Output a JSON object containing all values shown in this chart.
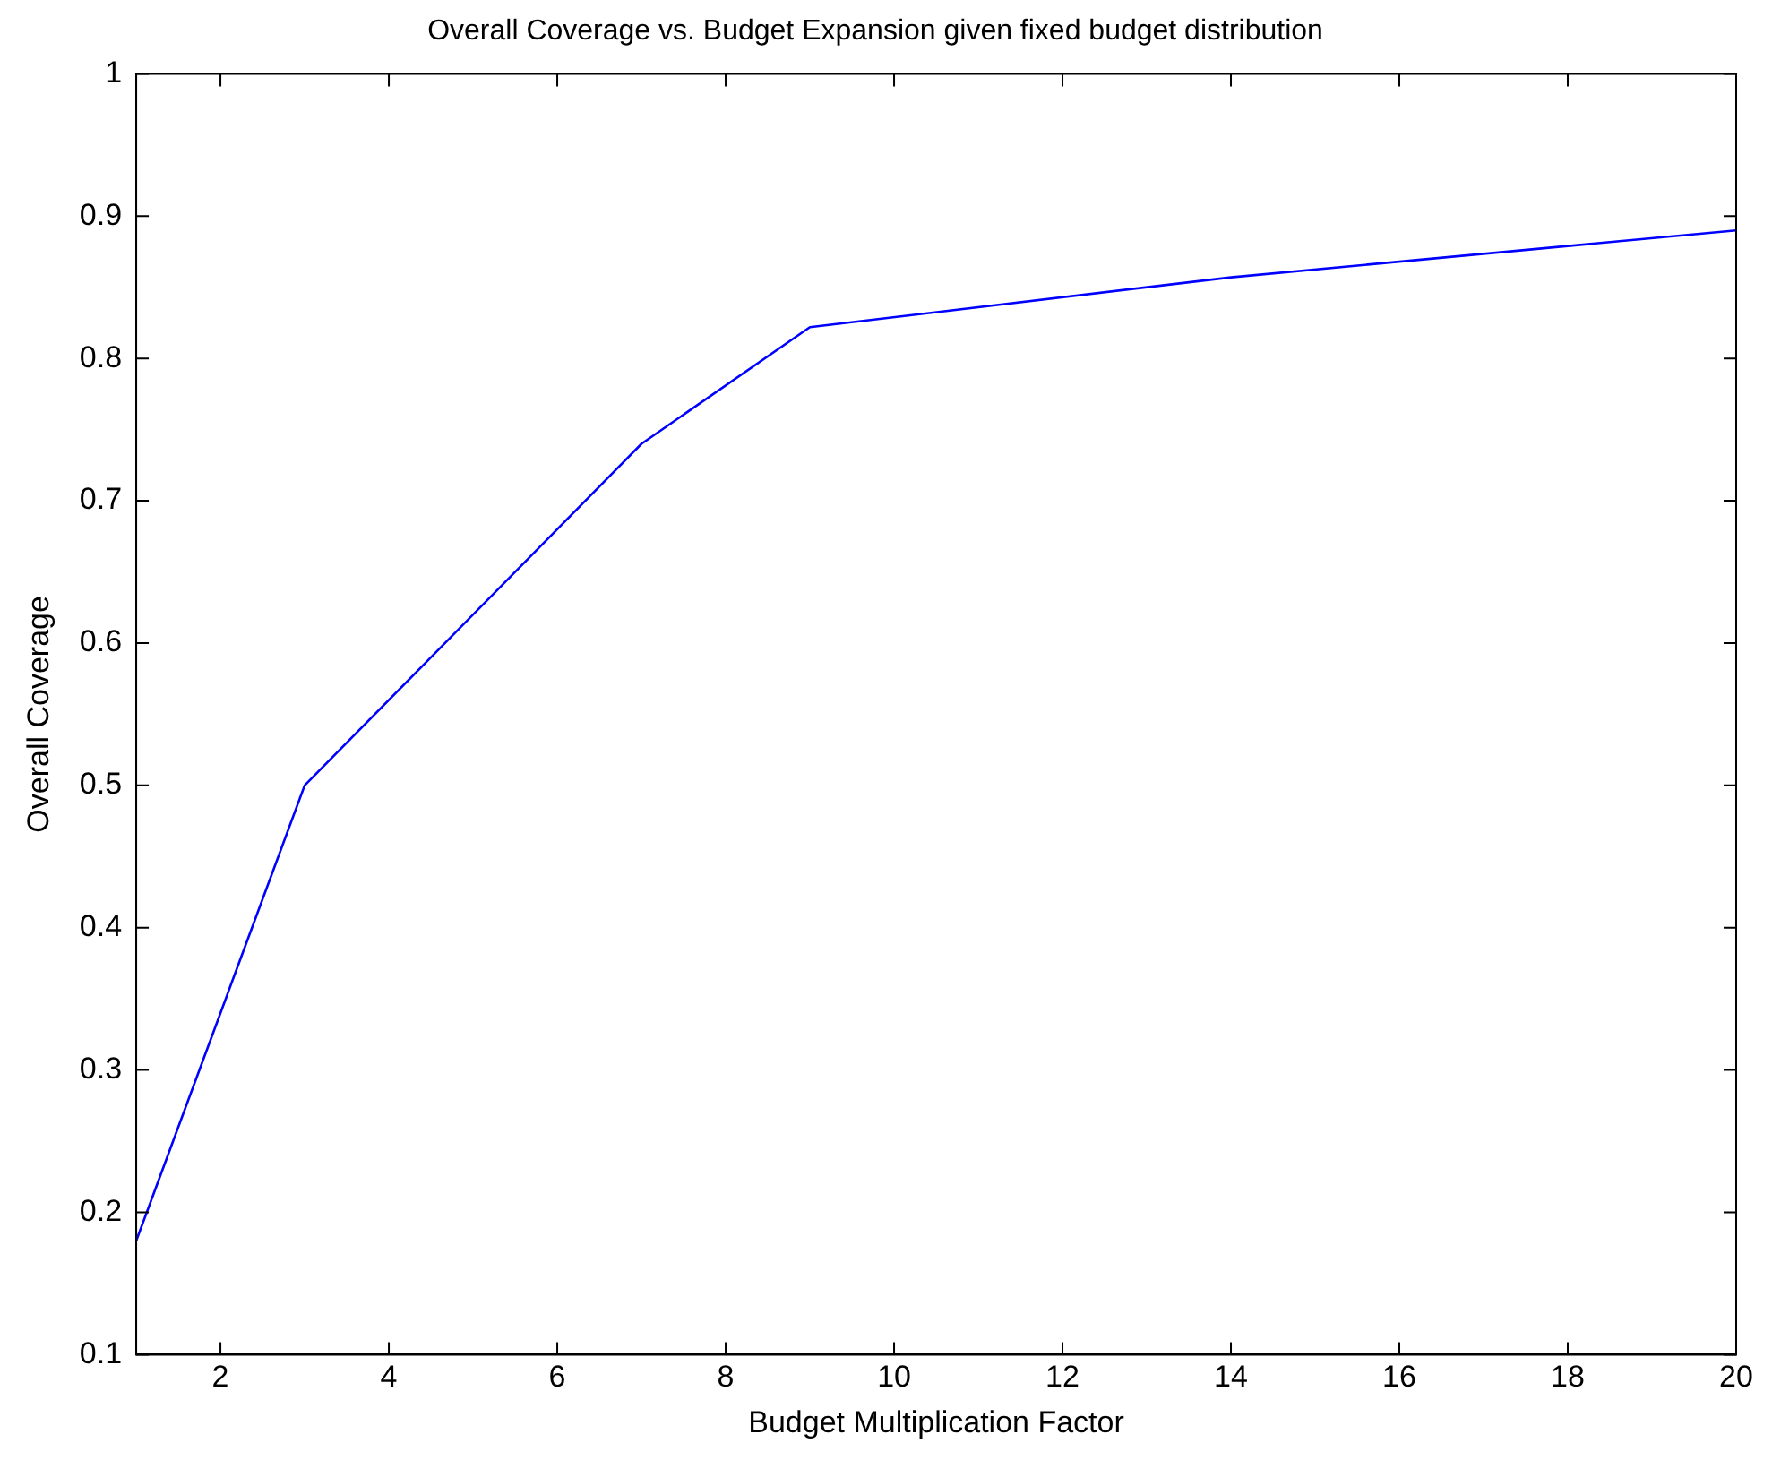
{
  "chart_data": {
    "type": "line",
    "title": "Overall Coverage vs. Budget Expansion given fixed budget distribution",
    "xlabel": "Budget Multiplication Factor",
    "ylabel": "Overall Coverage",
    "x": [
      1,
      3,
      7,
      9,
      14,
      20
    ],
    "series": [
      {
        "color": "#0000ff",
        "values": [
          0.18,
          0.5,
          0.74,
          0.822,
          0.857,
          0.89
        ]
      }
    ],
    "xlim": [
      1,
      20
    ],
    "xticks": [
      2,
      4,
      6,
      8,
      10,
      12,
      14,
      16,
      18,
      20
    ],
    "ylim": [
      0.1,
      1
    ],
    "yticks": [
      0.1,
      0.2,
      0.3,
      0.4,
      0.5,
      0.6,
      0.7,
      0.8,
      0.9,
      1
    ],
    "grid": false,
    "legend": false,
    "marker": "none",
    "line_style": "solid"
  }
}
